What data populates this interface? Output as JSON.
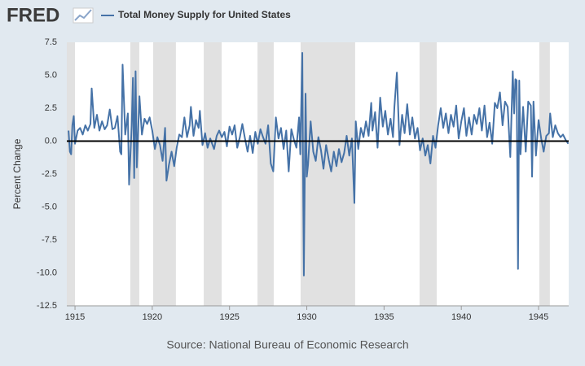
{
  "logo": "FRED",
  "chart_data": {
    "type": "line",
    "y_label": "Percent Change",
    "source": "Source: National Bureau of Economic Research",
    "xlim": [
      1914.47,
      1946.95
    ],
    "ylim": [
      -12.5,
      7.5
    ],
    "xticks": [
      1915,
      1920,
      1925,
      1930,
      1935,
      1940,
      1945
    ],
    "yticks": [
      7.5,
      {
        "value": 5,
        "label": "5.0"
      },
      2.5,
      {
        "value": 0,
        "label": "0.0"
      },
      -2.5,
      {
        "value": -5,
        "label": "-5.0"
      },
      -7.5,
      {
        "value": -10,
        "label": "-10.0"
      },
      -12.5
    ],
    "recessions": [
      [
        1914.47,
        1915.0
      ],
      [
        1918.58,
        1919.16
      ],
      [
        1920.06,
        1921.53
      ],
      [
        1923.33,
        1924.49
      ],
      [
        1926.81,
        1927.86
      ],
      [
        1929.6,
        1933.13
      ],
      [
        1937.3,
        1938.41
      ],
      [
        1945.05,
        1945.73
      ]
    ],
    "recession_color": "#e1e1e1",
    "grid": false,
    "series": [
      {
        "name": "Total Money Supply for United States",
        "color": "#4572a7",
        "x": [
          1914.58,
          1914.67,
          1914.75,
          1914.83,
          1914.92,
          1915.0,
          1915.17,
          1915.33,
          1915.5,
          1915.67,
          1915.83,
          1916.0,
          1916.08,
          1916.25,
          1916.42,
          1916.58,
          1916.75,
          1916.92,
          1917.08,
          1917.25,
          1917.42,
          1917.58,
          1917.75,
          1917.92,
          1918.0,
          1918.08,
          1918.25,
          1918.42,
          1918.5,
          1918.67,
          1918.75,
          1918.83,
          1918.92,
          1919.0,
          1919.17,
          1919.33,
          1919.5,
          1919.67,
          1919.83,
          1920.0,
          1920.17,
          1920.33,
          1920.5,
          1920.67,
          1920.83,
          1920.92,
          1921.08,
          1921.25,
          1921.42,
          1921.58,
          1921.75,
          1921.92,
          1922.08,
          1922.25,
          1922.42,
          1922.5,
          1922.67,
          1922.83,
          1923.0,
          1923.08,
          1923.25,
          1923.42,
          1923.58,
          1923.75,
          1924.0,
          1924.17,
          1924.33,
          1924.5,
          1924.67,
          1924.83,
          1925.0,
          1925.17,
          1925.33,
          1925.5,
          1925.67,
          1925.83,
          1926.0,
          1926.17,
          1926.33,
          1926.5,
          1926.67,
          1926.83,
          1927.0,
          1927.17,
          1927.33,
          1927.5,
          1927.67,
          1927.83,
          1928.0,
          1928.17,
          1928.33,
          1928.5,
          1928.67,
          1928.83,
          1929.0,
          1929.17,
          1929.33,
          1929.5,
          1929.58,
          1929.71,
          1929.75,
          1929.81,
          1929.92,
          1930.0,
          1930.08,
          1930.25,
          1930.42,
          1930.58,
          1930.75,
          1930.92,
          1931.08,
          1931.25,
          1931.42,
          1931.58,
          1931.75,
          1931.92,
          1932.08,
          1932.25,
          1932.42,
          1932.58,
          1932.75,
          1932.92,
          1933.08,
          1933.17,
          1933.33,
          1933.5,
          1933.67,
          1933.83,
          1934.0,
          1934.17,
          1934.25,
          1934.42,
          1934.58,
          1934.75,
          1934.92,
          1935.08,
          1935.25,
          1935.42,
          1935.58,
          1935.67,
          1935.83,
          1936.0,
          1936.17,
          1936.33,
          1936.5,
          1936.67,
          1936.83,
          1937.0,
          1937.17,
          1937.33,
          1937.5,
          1937.67,
          1937.83,
          1938.0,
          1938.17,
          1938.33,
          1938.5,
          1938.67,
          1938.83,
          1939.0,
          1939.17,
          1939.33,
          1939.5,
          1939.67,
          1939.83,
          1940.0,
          1940.17,
          1940.33,
          1940.5,
          1940.67,
          1940.83,
          1941.0,
          1941.17,
          1941.33,
          1941.5,
          1941.67,
          1941.83,
          1942.0,
          1942.17,
          1942.33,
          1942.5,
          1942.67,
          1942.83,
          1943.0,
          1943.17,
          1943.33,
          1943.42,
          1943.5,
          1943.58,
          1943.67,
          1943.75,
          1943.83,
          1944.0,
          1944.17,
          1944.33,
          1944.5,
          1944.58,
          1944.67,
          1944.83,
          1945.0,
          1945.17,
          1945.33,
          1945.5,
          1945.67,
          1945.75,
          1945.92,
          1946.08,
          1946.25,
          1946.42,
          1946.58,
          1946.75,
          1946.92
        ],
        "values": [
          0.8,
          -0.8,
          -1.0,
          1.2,
          1.9,
          -0.2,
          0.8,
          1.0,
          0.5,
          1.2,
          0.8,
          1.3,
          4.0,
          1.0,
          2.0,
          0.8,
          1.5,
          0.9,
          1.2,
          2.4,
          0.9,
          1.0,
          1.9,
          -0.8,
          -1.0,
          5.8,
          0.5,
          2.1,
          -3.3,
          1.2,
          4.8,
          -2.8,
          5.3,
          -2.0,
          3.4,
          0.5,
          1.7,
          1.3,
          1.8,
          0.8,
          -0.6,
          0.3,
          -0.3,
          -1.5,
          1.0,
          -3.0,
          -1.8,
          -0.8,
          -1.9,
          -0.5,
          0.5,
          0.3,
          1.8,
          0.3,
          1.2,
          2.6,
          0.4,
          1.6,
          1.0,
          2.3,
          -0.3,
          0.6,
          -0.5,
          0.2,
          -0.6,
          0.4,
          0.8,
          0.3,
          0.7,
          -0.4,
          1.1,
          0.5,
          1.2,
          -0.5,
          0.3,
          1.3,
          0.2,
          -0.8,
          0.4,
          -0.9,
          0.7,
          -0.2,
          0.9,
          0.3,
          -0.2,
          1.2,
          -1.7,
          -2.3,
          1.8,
          0.2,
          1.0,
          -0.6,
          0.8,
          -2.3,
          0.9,
          0.1,
          -0.5,
          1.8,
          -1.0,
          6.7,
          -0.8,
          -10.2,
          3.6,
          -2.7,
          -1.8,
          1.5,
          -0.8,
          -1.5,
          0.3,
          -0.7,
          -2.1,
          -0.3,
          -1.4,
          -2.3,
          -0.8,
          -1.9,
          -0.6,
          -1.6,
          -0.9,
          0.4,
          -1.1,
          0.2,
          -4.7,
          1.5,
          -0.6,
          1.0,
          0.3,
          1.5,
          0.4,
          2.9,
          0.8,
          2.2,
          -0.5,
          3.3,
          1.1,
          2.3,
          0.5,
          1.7,
          0.3,
          2.6,
          5.2,
          -0.3,
          2.0,
          0.6,
          2.8,
          0.5,
          1.8,
          0.2,
          1.0,
          -0.7,
          0.2,
          -1.1,
          -0.3,
          -1.7,
          0.4,
          -0.5,
          1.2,
          2.5,
          1.0,
          2.1,
          0.6,
          2.0,
          1.1,
          2.7,
          0.2,
          1.5,
          2.5,
          0.4,
          1.8,
          0.5,
          2.0,
          1.3,
          2.5,
          0.8,
          2.7,
          0.3,
          1.4,
          -0.2,
          2.9,
          2.5,
          3.7,
          1.2,
          3.0,
          2.6,
          -1.2,
          5.3,
          2.1,
          4.7,
          4.6,
          -9.7,
          4.6,
          -1.0,
          2.6,
          -0.8,
          3.0,
          2.7,
          -2.7,
          3.0,
          -1.1,
          1.6,
          0.2,
          -0.8,
          0.4,
          0.6,
          2.1,
          0.3,
          1.2,
          0.6,
          0.3,
          0.5,
          0.1,
          -0.2
        ]
      }
    ]
  }
}
